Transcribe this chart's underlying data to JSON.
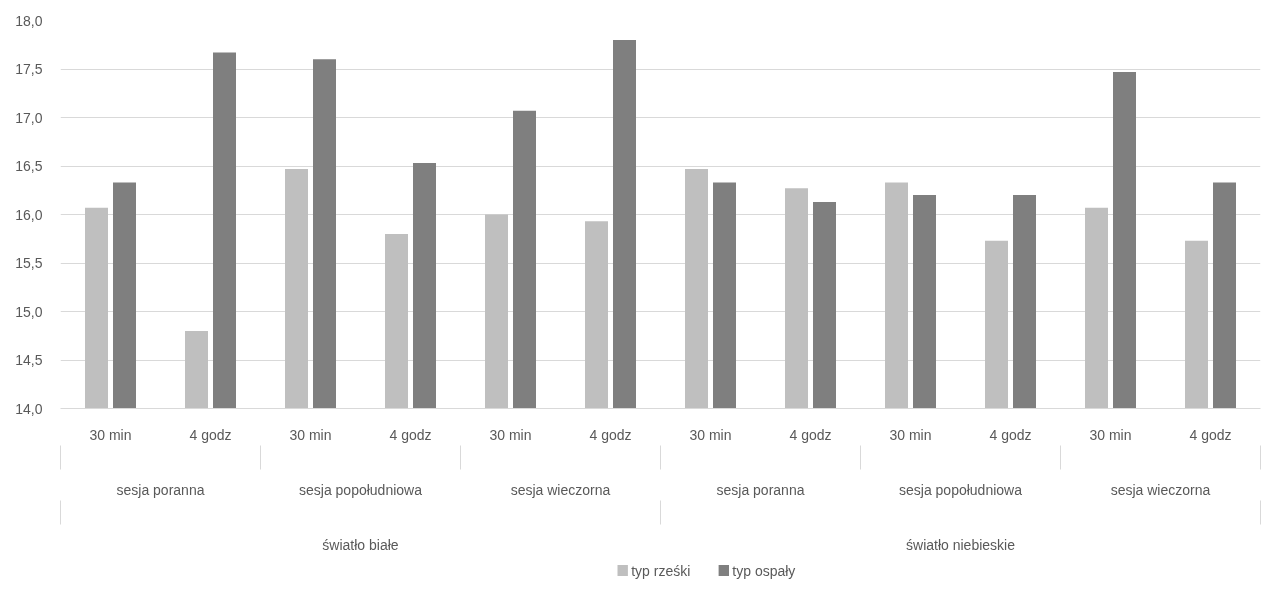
{
  "chart_data": {
    "type": "bar",
    "categories": [
      "30 min",
      "4 godz",
      "30 min",
      "4 godz",
      "30 min",
      "4 godz",
      "30 min",
      "4 godz",
      "30 min",
      "4 godz",
      "30 min",
      "4 godz"
    ],
    "annotations": [
      "sesja poranna",
      "sesja popołudniowa",
      "sesja wieczorna",
      "sesja poranna",
      "sesja popołudniowa",
      "sesja wieczorna",
      "światło białe",
      "światło niebieskie"
    ],
    "series": [
      {
        "name": "typ rześki",
        "color": "#bfbfbf",
        "values": [
          16.07,
          14.8,
          16.47,
          15.8,
          16.0,
          15.93,
          16.47,
          16.27,
          16.33,
          15.73,
          16.07,
          15.73
        ]
      },
      {
        "name": "typ ospały",
        "color": "#7f7f7f",
        "values": [
          16.33,
          17.67,
          17.6,
          16.53,
          17.07,
          17.8,
          16.33,
          16.13,
          16.2,
          16.2,
          17.47,
          16.33
        ]
      }
    ],
    "ylim": [
      14,
      18
    ],
    "yticks": [
      {
        "value": 14,
        "label": "14,0"
      },
      {
        "value": 14.5,
        "label": "14,5"
      },
      {
        "value": 15,
        "label": "15,0"
      },
      {
        "value": 15.5,
        "label": "15,5"
      },
      {
        "value": 16,
        "label": "16,0"
      },
      {
        "value": 16.5,
        "label": "16,5"
      },
      {
        "value": 17,
        "label": "17,0"
      },
      {
        "value": 17.5,
        "label": "17,5"
      },
      {
        "value": 18,
        "label": "18,0"
      }
    ],
    "grid": "y",
    "legend": "bottom"
  }
}
